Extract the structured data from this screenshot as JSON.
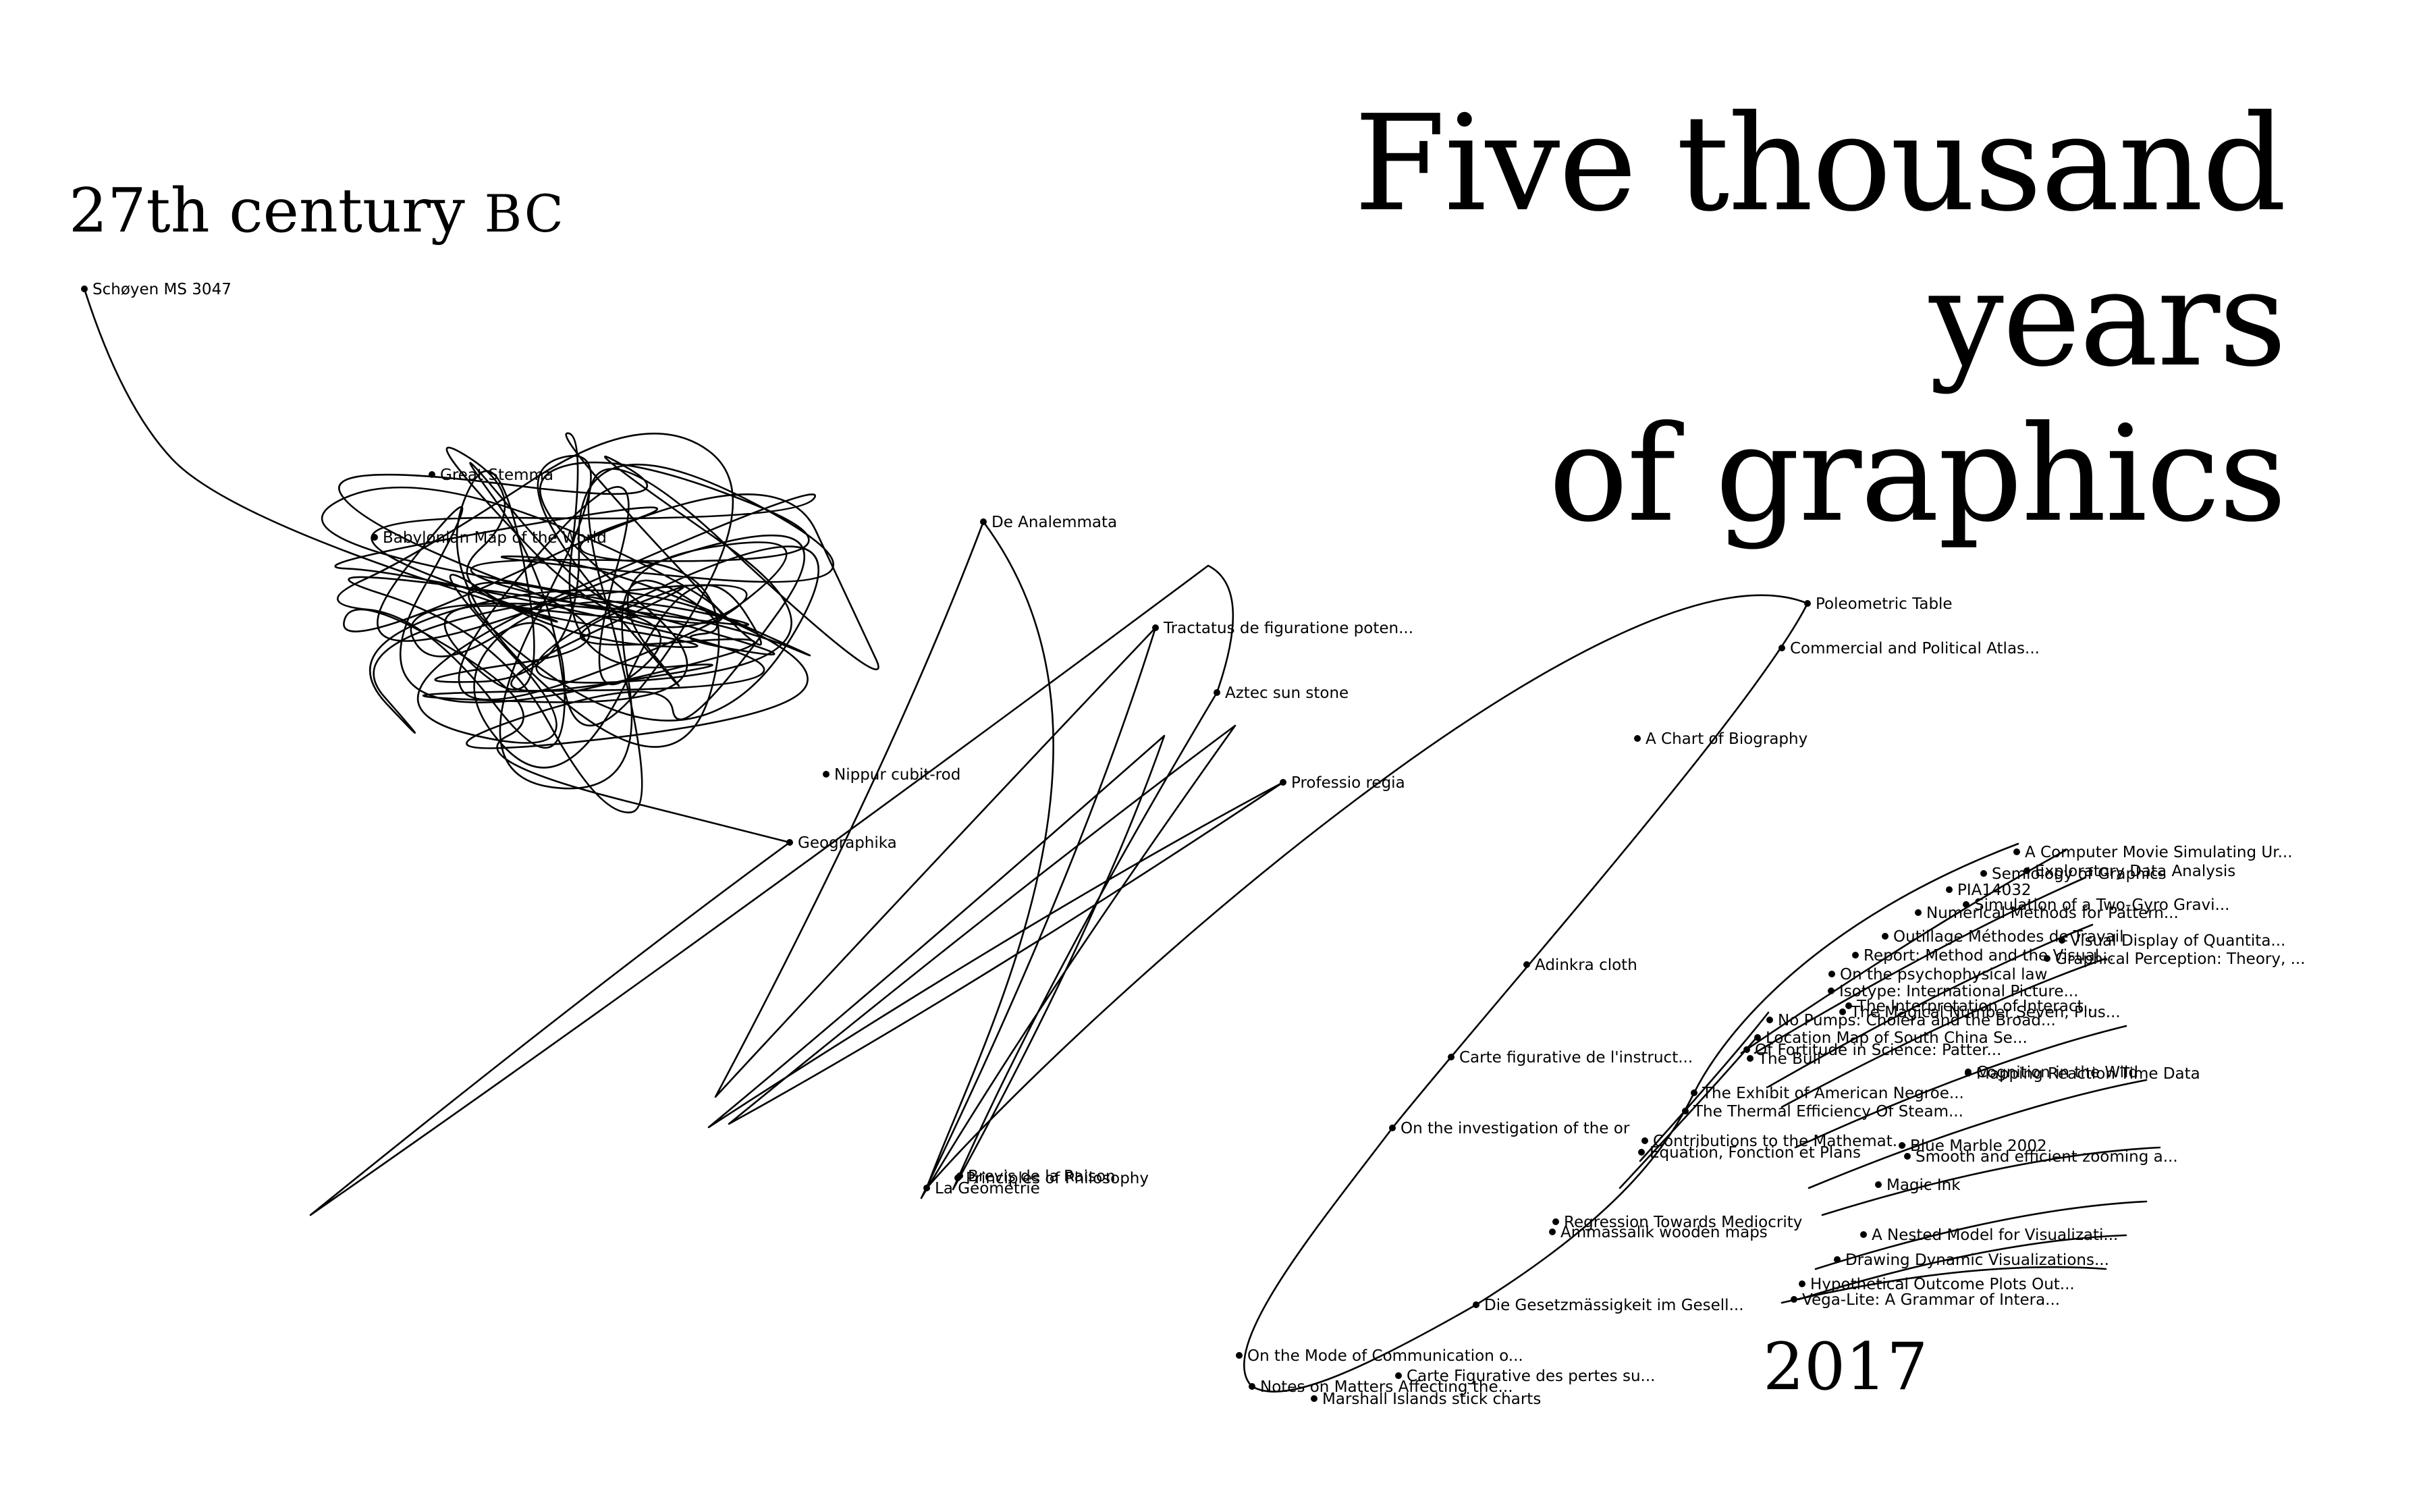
{
  "chart_data": {
    "type": "line",
    "title_lines": [
      "Five thousand years",
      "of graphics"
    ],
    "start_label": {
      "text": "27th century ",
      "era": "BC"
    },
    "end_label": "2017",
    "events": [
      "Schøyen MS 3047",
      "Great Stemma",
      "Babylonian Map of the World",
      "De Analemmata",
      "Tractatus de figuratione poten...",
      "Aztec sun stone",
      "Professio regia",
      "Nippur cubit-rod",
      "Geographika",
      "Poleometric Table",
      "Commercial and Political Atlas...",
      "A Chart of Biography",
      "Adinkra cloth",
      "Carte figurative de l'instruct...",
      "On the investigation of the or",
      "Regression Towards Mediocrity",
      "Ammassalik wooden maps",
      "Die Gesetzmässigkeit im Gesell...",
      "On the Mode of Communication o...",
      "Carte Figurative des pertes su...",
      "Notes on Matters Affecting the...",
      "Marshall Islands stick charts",
      "Principles of Philosophy",
      "Brevis de la Raison",
      "La Géométrie",
      "The Exhibit of American Negroe...",
      "The Thermal Efficiency Of Steam...",
      "Contributions to the Mathemat...",
      "Équation, Fonction et Plans",
      "No Pumps: Cholera and the Broad...",
      "Location Map of South China Se...",
      "Of Fortitude in Science: Patter...",
      "The Bull",
      "Semiology of Graphics",
      "PIA14032",
      "Simulation of a Two-Gyro Gravi...",
      "Numerical Methods for Pattern...",
      "Outillage Méthodes de Travail",
      "Report: Method and the Visual...",
      "On the psychophysical law",
      "The Magical Number Seven, Plus...",
      "Isotype: International Picture...",
      "The Interpretation of Interact...",
      "Visual Display of Quantita...",
      "Graphical Perception: Theory, ...",
      "A Computer Movie Simulating Ur...",
      "Exploratory Data Analysis",
      "Mapping Reaction Time Data",
      "Cognition in the Wild",
      "Blue Marble 2002",
      "Smooth and efficient zooming a...",
      "Magic Ink",
      "A Nested Model for Visualizati...",
      "Drawing Dynamic Visualizations...",
      "Hypothetical Outcome Plots Out...",
      "Vega-Lite: A Grammar of Intera..."
    ]
  }
}
